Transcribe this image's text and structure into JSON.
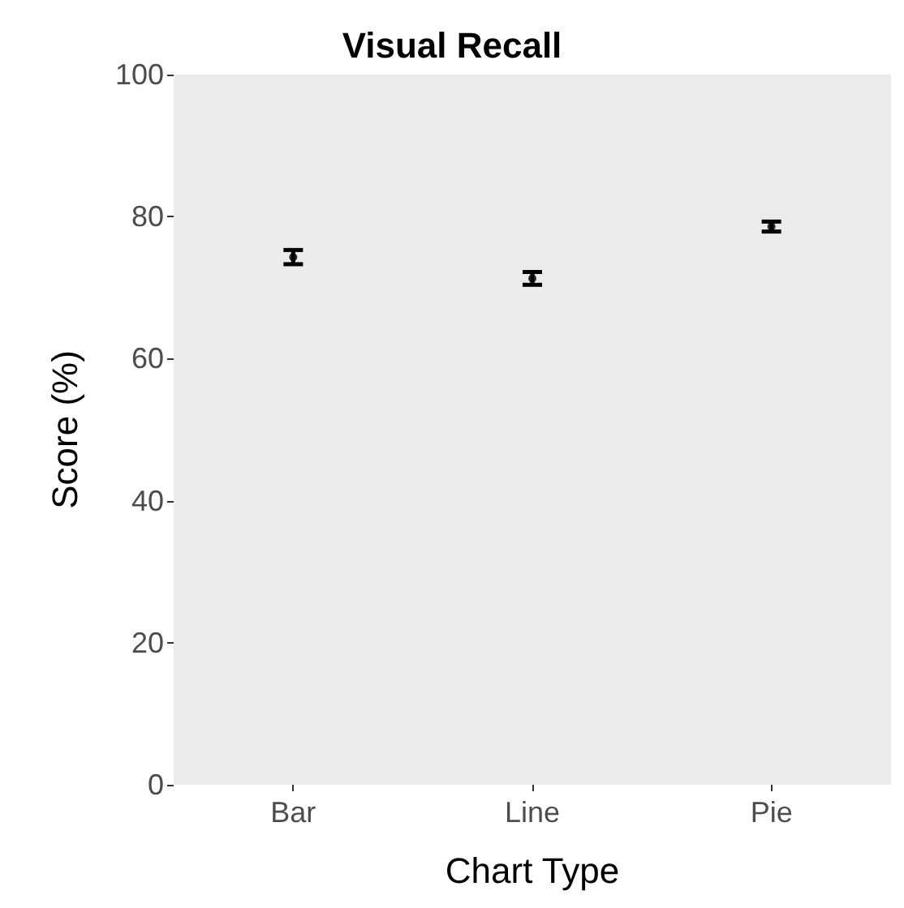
{
  "chart_data": {
    "type": "scatter",
    "title": "Visual Recall",
    "xlabel": "Chart Type",
    "ylabel": "Score (%)",
    "categories": [
      "Bar",
      "Line",
      "Pie"
    ],
    "series": [
      {
        "color": "#000000",
        "values": [
          74.3,
          71.3,
          78.6
        ],
        "errors": [
          1.0,
          0.9,
          0.7
        ]
      }
    ],
    "ylim": [
      0,
      100
    ],
    "yticks": [
      0,
      20,
      40,
      60,
      80,
      100
    ],
    "grid": false,
    "marker": "circle"
  }
}
